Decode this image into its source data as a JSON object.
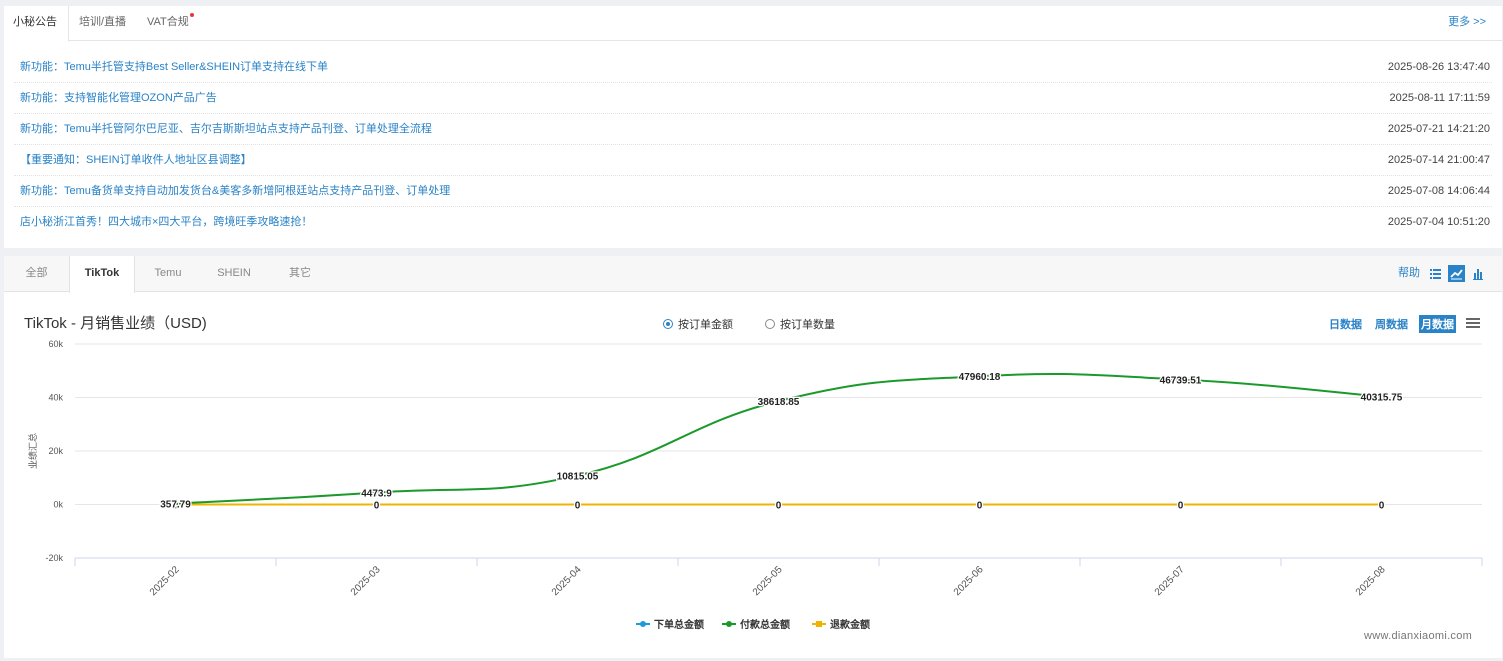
{
  "notice": {
    "tabs": [
      {
        "label": "小秘公告",
        "active": true
      },
      {
        "label": "培训/直播",
        "active": false
      },
      {
        "label": "VAT合规",
        "active": false,
        "badge": true
      }
    ],
    "more": "更多 >>",
    "items": [
      {
        "title": "新功能：Temu半托管支持Best Seller&SHEIN订单支持在线下单",
        "time": "2025-08-26 13:47:40"
      },
      {
        "title": "新功能：支持智能化管理OZON产品广告",
        "time": "2025-08-11 17:11:59"
      },
      {
        "title": "新功能：Temu半托管阿尔巴尼亚、吉尔吉斯斯坦站点支持产品刊登、订单处理全流程",
        "time": "2025-07-21 14:21:20"
      },
      {
        "title": "【重要通知：SHEIN订单收件人地址区县调整】",
        "time": "2025-07-14 21:00:47"
      },
      {
        "title": "新功能：Temu备货单支持自动加发货台&美客多新增阿根廷站点支持产品刊登、订单处理",
        "time": "2025-07-08 14:06:44"
      },
      {
        "title": "店小秘浙江首秀！四大城市×四大平台，跨境旺季攻略速抢！",
        "time": "2025-07-04 10:51:20"
      }
    ]
  },
  "platform_tabs": [
    {
      "label": "全部",
      "active": false
    },
    {
      "label": "TikTok",
      "active": true
    },
    {
      "label": "Temu",
      "active": false
    },
    {
      "label": "SHEIN",
      "active": false
    },
    {
      "label": "其它",
      "active": false
    }
  ],
  "toolbar": {
    "help": "帮助",
    "icons": [
      {
        "name": "list-view-icon",
        "active": false
      },
      {
        "name": "line-chart-icon",
        "active": true
      },
      {
        "name": "bar-chart-icon",
        "active": false
      }
    ]
  },
  "chart_header": {
    "title": "TikTok - 月销售业绩（USD)",
    "radio": [
      {
        "label": "按订单金额",
        "checked": true
      },
      {
        "label": "按订单数量",
        "checked": false
      }
    ],
    "periods": [
      {
        "label": "日数据",
        "active": false
      },
      {
        "label": "周数据",
        "active": false
      },
      {
        "label": "月数据",
        "active": true
      }
    ]
  },
  "chart_data": {
    "type": "line",
    "title": "TikTok - 月销售业绩（USD)",
    "xlabel": "",
    "ylabel": "业绩汇总",
    "categories": [
      "2025-02",
      "2025-03",
      "2025-04",
      "2025-05",
      "2025-06",
      "2025-07",
      "2025-08"
    ],
    "ylim": [
      -20000,
      60000
    ],
    "yticks": [
      -20000,
      0,
      20000,
      40000,
      60000
    ],
    "ytick_labels": [
      "-20k",
      "0k",
      "20k",
      "40k",
      "60k"
    ],
    "grid": true,
    "legend_position": "bottom",
    "series": [
      {
        "name": "下单总金额",
        "color": "#1f9bd6",
        "values": [
          null,
          null,
          null,
          null,
          null,
          null,
          null
        ],
        "show_labels": false
      },
      {
        "name": "付款总金额",
        "color": "#1a9a2a",
        "values": [
          357.79,
          4473.9,
          10815.05,
          38618.85,
          47960.18,
          46739.51,
          40315.75
        ],
        "show_labels": true
      },
      {
        "name": "退款金额",
        "color": "#f0b400",
        "values": [
          0,
          0,
          0,
          0,
          0,
          0,
          0
        ],
        "show_labels": true
      }
    ],
    "data_labels": {
      "付款总金额": [
        "357.79",
        "4473.9",
        "10815.05",
        "38618.85",
        "47960.18",
        "46739.51",
        "40315.75"
      ],
      "退款金额": [
        "0",
        "0",
        "0",
        "0",
        "0",
        "0",
        "0"
      ]
    }
  },
  "watermark": "www.dianxiaomi.com"
}
